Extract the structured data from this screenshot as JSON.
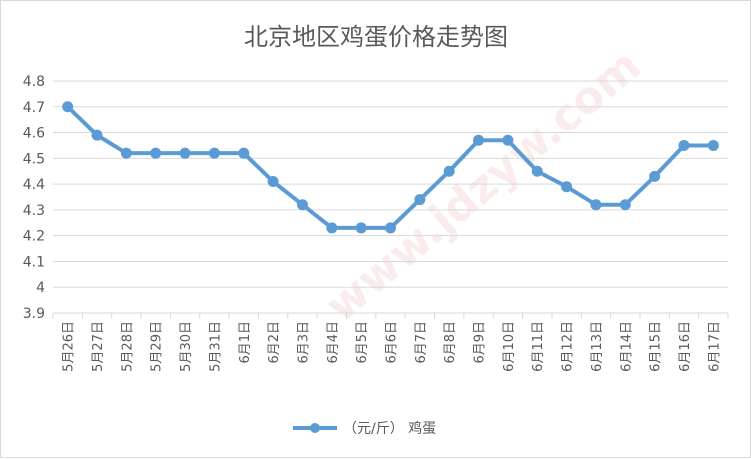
{
  "chart_data": {
    "type": "line",
    "title": "北京地区鸡蛋价格走势图",
    "xlabel": "",
    "ylabel": "",
    "ylim": [
      3.9,
      4.8
    ],
    "yticks": [
      3.9,
      4,
      4.1,
      4.2,
      4.3,
      4.4,
      4.5,
      4.6,
      4.7,
      4.8
    ],
    "grid": true,
    "legend_position": "bottom",
    "categories": [
      "5月26日",
      "5月27日",
      "5月28日",
      "5月29日",
      "5月30日",
      "5月31日",
      "6月1日",
      "6月2日",
      "6月3日",
      "6月4日",
      "6月5日",
      "6月6日",
      "6月7日",
      "6月8日",
      "6月9日",
      "6月10日",
      "6月11日",
      "6月12日",
      "6月13日",
      "6月14日",
      "6月15日",
      "6月16日",
      "6月17日"
    ],
    "series": [
      {
        "name": "（元/斤） 鸡蛋",
        "color": "#5b9bd5",
        "values": [
          4.7,
          4.59,
          4.52,
          4.52,
          4.52,
          4.52,
          4.52,
          4.41,
          4.32,
          4.23,
          4.23,
          4.23,
          4.34,
          4.45,
          4.57,
          4.57,
          4.45,
          4.39,
          4.32,
          4.32,
          4.43,
          4.55,
          4.55
        ]
      }
    ]
  },
  "colors": {
    "line": "#5b9bd5",
    "grid": "#d9d9d9",
    "text": "#595959"
  }
}
